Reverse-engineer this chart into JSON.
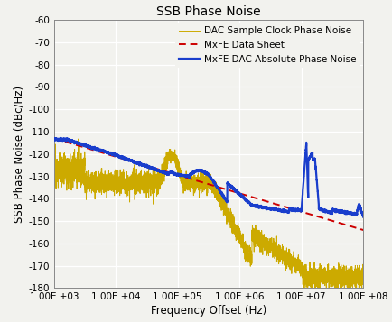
{
  "title": "SSB Phase Noise",
  "xlabel": "Frequency Offset (Hz)",
  "ylabel": "SSB Phase Noise (dBc/Hz)",
  "ylim": [
    -180,
    -60
  ],
  "yticks": [
    -180,
    -170,
    -160,
    -150,
    -140,
    -130,
    -120,
    -110,
    -100,
    -90,
    -80,
    -70,
    -60
  ],
  "xtick_labels": [
    "1.00E +03",
    "1.00E +04",
    "1.00E +05",
    "1.00E +06",
    "1.00E +07",
    "1.00E +08"
  ],
  "xtick_positions": [
    1000,
    10000,
    100000,
    1000000,
    10000000,
    100000000
  ],
  "line_mxfe_ds": {
    "color": "#cc0000",
    "lw": 1.4,
    "label": "MxFE Data Sheet"
  },
  "line_clock": {
    "color": "#ccaa00",
    "lw": 0.7,
    "label": "DAC Sample Clock Phase Noise"
  },
  "line_abs": {
    "color": "#1a3ecc",
    "lw": 1.6,
    "label": "MxFE DAC Absolute Phase Noise"
  },
  "bg_color": "#f2f2ee",
  "plot_bg": "#f2f2ee",
  "grid_color": "#ffffff",
  "title_fontsize": 10,
  "axis_label_fontsize": 8.5,
  "tick_fontsize": 7.5,
  "legend_fontsize": 7.5
}
